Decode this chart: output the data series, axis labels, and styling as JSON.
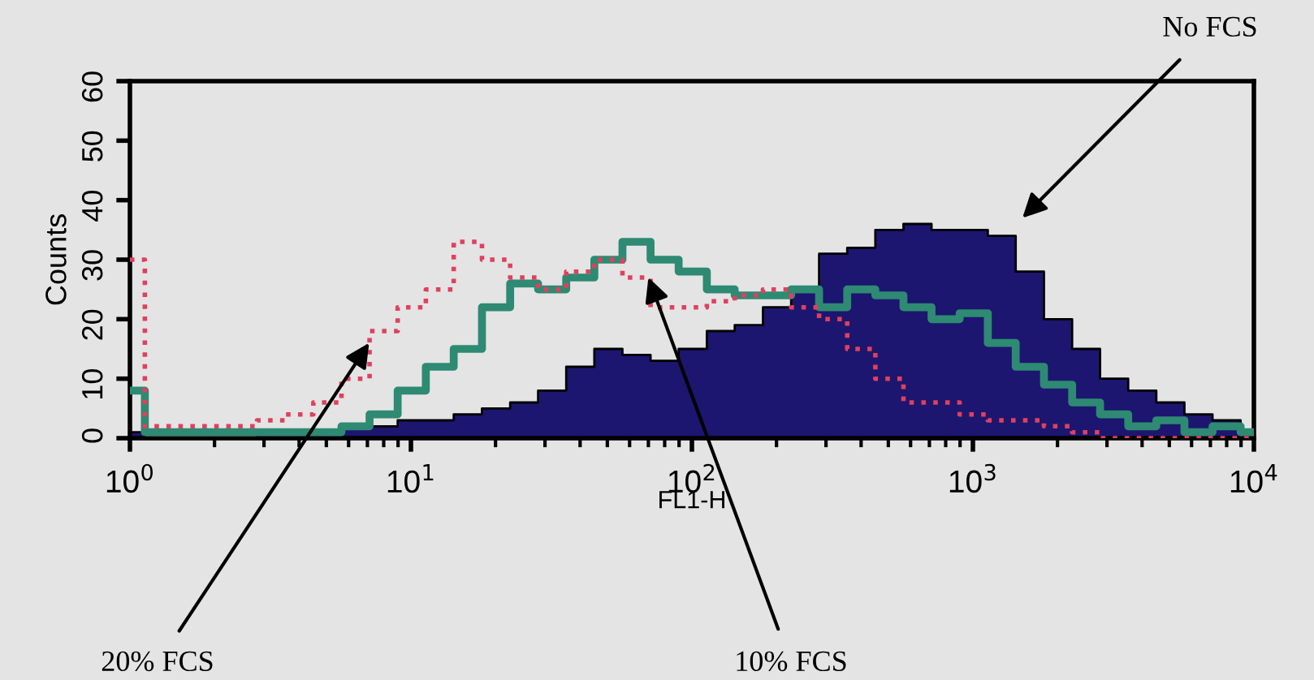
{
  "chart_data": {
    "type": "step",
    "xlabel": "FL1-H",
    "ylabel": "Counts",
    "log": "x",
    "grid": false,
    "legend": false,
    "x": [
      1,
      1.26,
      1.58,
      2,
      2.51,
      3.16,
      3.98,
      5.01,
      6.31,
      7.94,
      10,
      12.6,
      15.8,
      20,
      25.1,
      31.6,
      39.8,
      50.1,
      63.1,
      79.4,
      100,
      126,
      158,
      200,
      251,
      316,
      398,
      501,
      631,
      794,
      1000,
      1260,
      1580,
      2000,
      2510,
      3160,
      3980,
      5010,
      6310,
      7940,
      10000
    ],
    "series": [
      {
        "name": "No FCS",
        "type": "area",
        "color": "#1c1670",
        "values": [
          1,
          0,
          0,
          0,
          0,
          1,
          1,
          1,
          2,
          2,
          3,
          3,
          4,
          5,
          6,
          8,
          12,
          15,
          14,
          13,
          15,
          18,
          19,
          22,
          25,
          31,
          32,
          35,
          36,
          35,
          35,
          34,
          28,
          20,
          15,
          10,
          8,
          6,
          4,
          3,
          1
        ]
      },
      {
        "name": "10% FCS",
        "color": "#2e8a72",
        "line_style": "solid",
        "values": [
          8,
          1,
          1,
          1,
          1,
          1,
          1,
          1,
          2,
          4,
          8,
          12,
          15,
          22,
          26,
          25,
          27,
          30,
          33,
          30,
          28,
          25,
          24,
          24,
          25,
          22,
          25,
          24,
          22,
          20,
          21,
          16,
          12,
          9,
          6,
          4,
          2,
          3,
          1,
          2,
          1
        ]
      },
      {
        "name": "20% FCS",
        "color": "#e0405e",
        "line_style": "dotted",
        "values": [
          30,
          2,
          2,
          2,
          2,
          3,
          4,
          6,
          10,
          18,
          22,
          25,
          33,
          30,
          27,
          25,
          28,
          30,
          27,
          22,
          22,
          23,
          24,
          25,
          22,
          20,
          15,
          10,
          6,
          6,
          4,
          3,
          3,
          2,
          1,
          0,
          0,
          0,
          0,
          0,
          0
        ]
      }
    ],
    "xlim": [
      1,
      10000
    ],
    "ylim": [
      0,
      60
    ],
    "xticks": [
      {
        "value": 1,
        "label": "10$^{0}$"
      },
      {
        "value": 10,
        "label": "10$^{1}$"
      },
      {
        "value": 100,
        "label": "10$^{2}$"
      },
      {
        "value": 1000,
        "label": "10$^{3}$"
      },
      {
        "value": 10000,
        "label": "10$^{4}$"
      }
    ],
    "yticks": [
      0,
      10,
      20,
      30,
      40,
      50,
      60
    ]
  }
}
